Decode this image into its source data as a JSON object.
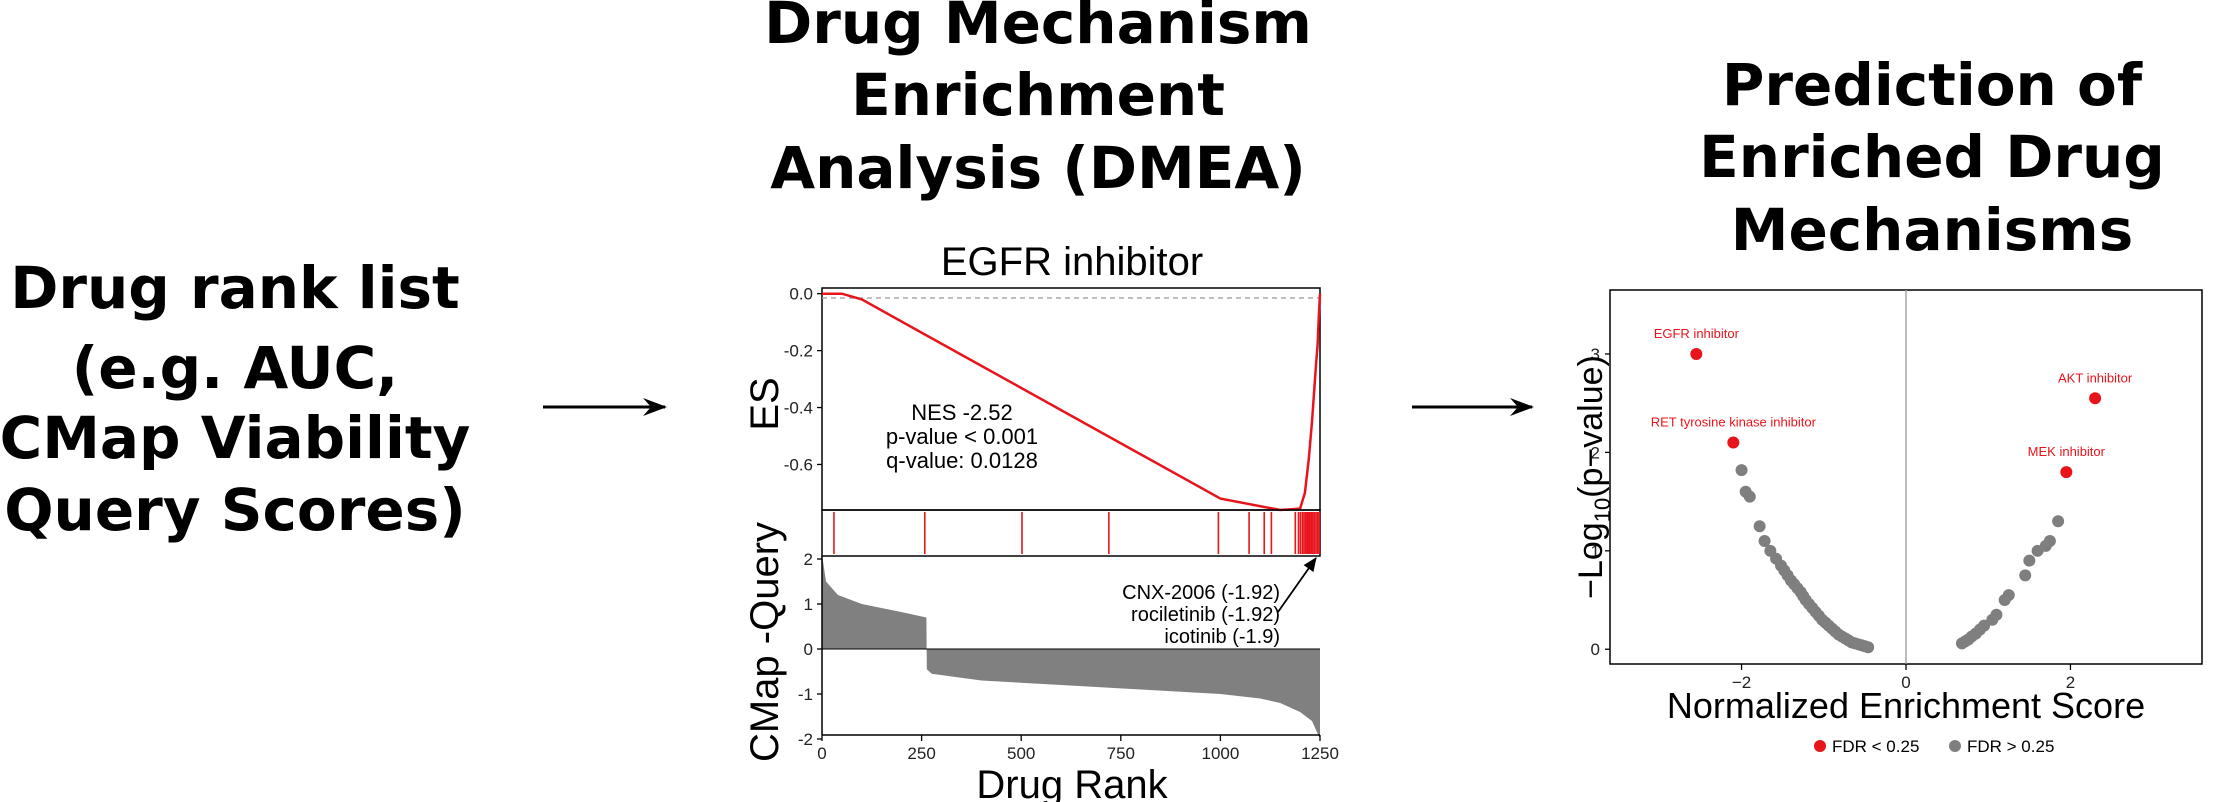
{
  "left_title_lines": [
    "Drug rank list",
    "(e.g. AUC,",
    "CMap Viability",
    "Query Scores)"
  ],
  "middle_title_lines": [
    "Drug Mechanism",
    "Enrichment",
    "Analysis (DMEA)"
  ],
  "right_title_lines": [
    "Prediction of",
    "Enriched Drug",
    "Mechanisms"
  ],
  "colors": {
    "red": "#e8141c",
    "gray": "#7f7f7f",
    "black": "#000000"
  },
  "chart_data": [
    {
      "type": "line",
      "title": "EGFR inhibitor",
      "ylabel": "ES",
      "xlim": [
        0,
        1250
      ],
      "ylim": [
        -0.76,
        0.02
      ],
      "yticks": [
        "0.0",
        "-0.2",
        "-0.4",
        "-0.6"
      ],
      "ytick_values": [
        0.0,
        -0.2,
        -0.4,
        -0.6
      ],
      "series": [
        {
          "x": [
            0,
            50,
            100,
            1000,
            1150,
            1200,
            1212,
            1222,
            1230,
            1236,
            1240,
            1244,
            1247,
            1250
          ],
          "y": [
            0.0,
            0.0,
            -0.02,
            -0.72,
            -0.76,
            -0.755,
            -0.7,
            -0.58,
            -0.45,
            -0.33,
            -0.25,
            -0.18,
            -0.08,
            0.0
          ]
        }
      ],
      "annotations": [
        "NES -2.52",
        "p-value < 0.001",
        "q-value: 0.0128"
      ],
      "hits": [
        30,
        258,
        502,
        720,
        995,
        1072,
        1110,
        1128,
        1188,
        1196,
        1201,
        1206,
        1210,
        1214,
        1218,
        1221,
        1224,
        1228,
        1232,
        1236,
        1240,
        1244,
        1248
      ]
    },
    {
      "type": "bar",
      "ylabel": "CMap -Query",
      "xlabel": "Drug Rank",
      "xlim": [
        0,
        1250
      ],
      "ylim": [
        -2.1,
        2.2
      ],
      "xticks": [
        0,
        250,
        500,
        750,
        1000,
        1250
      ],
      "yticks": [
        2,
        1,
        0,
        -1,
        -2
      ],
      "labeled_drugs": [
        "CNX-2006 (-1.92)",
        "rociletinib (-1.92)",
        "icotinib (-1.9)"
      ],
      "profile": {
        "x": [
          0,
          10,
          40,
          100,
          200,
          262,
          263,
          275,
          400,
          600,
          800,
          1000,
          1100,
          1150,
          1200,
          1230,
          1250
        ],
        "y": [
          2.1,
          1.5,
          1.2,
          1.0,
          0.82,
          0.7,
          -0.45,
          -0.55,
          -0.7,
          -0.8,
          -0.9,
          -1.0,
          -1.1,
          -1.2,
          -1.4,
          -1.6,
          -2.0
        ]
      }
    },
    {
      "type": "scatter",
      "xlabel": "Normalized Enrichment Score",
      "ylabel": "−Log",
      "ylabel_sub": "10",
      "ylabel_tail": "(p−value)",
      "xlim": [
        -3.6,
        3.6
      ],
      "ylim": [
        -0.15,
        3.65
      ],
      "xticks": [
        -2,
        0,
        2
      ],
      "xtick_labels": [
        "−2",
        "0",
        "2"
      ],
      "yticks": [
        0,
        1,
        2,
        3
      ],
      "legend": [
        "FDR < 0.25",
        "FDR > 0.25"
      ],
      "legend_placement": "bottom",
      "labeled_points": [
        {
          "label": "EGFR inhibitor",
          "x": -2.55,
          "y": 3.0
        },
        {
          "label": "RET tyrosine kinase inhibitor",
          "x": -2.1,
          "y": 2.1
        },
        {
          "label": "AKT inhibitor",
          "x": 2.3,
          "y": 2.55
        },
        {
          "label": "MEK inhibitor",
          "x": 1.95,
          "y": 1.8
        }
      ],
      "gray_points": {
        "x": [
          -2.0,
          -1.95,
          -1.9,
          -1.78,
          -1.72,
          -1.65,
          -1.58,
          -1.52,
          -1.48,
          -1.44,
          -1.4,
          -1.36,
          -1.32,
          -1.28,
          -1.25,
          -1.22,
          -1.18,
          -1.14,
          -1.1,
          -1.06,
          -1.02,
          -0.98,
          -0.94,
          -0.9,
          -0.86,
          -0.82,
          -0.78,
          -0.74,
          -0.7,
          -0.66,
          -0.62,
          -0.58,
          -0.54,
          -0.5,
          -0.46,
          0.68,
          0.72,
          0.76,
          0.8,
          0.85,
          0.9,
          0.95,
          1.05,
          1.1,
          1.2,
          1.25,
          1.45,
          1.5,
          1.6,
          1.7,
          1.75,
          1.85
        ],
        "y": [
          1.82,
          1.6,
          1.55,
          1.25,
          1.1,
          1.0,
          0.92,
          0.85,
          0.8,
          0.75,
          0.7,
          0.66,
          0.62,
          0.58,
          0.54,
          0.5,
          0.46,
          0.42,
          0.38,
          0.34,
          0.3,
          0.27,
          0.24,
          0.21,
          0.18,
          0.15,
          0.13,
          0.11,
          0.09,
          0.07,
          0.06,
          0.05,
          0.04,
          0.03,
          0.02,
          0.06,
          0.08,
          0.1,
          0.13,
          0.16,
          0.2,
          0.24,
          0.3,
          0.35,
          0.5,
          0.55,
          0.75,
          0.9,
          1.0,
          1.05,
          1.1,
          1.3
        ]
      }
    }
  ]
}
